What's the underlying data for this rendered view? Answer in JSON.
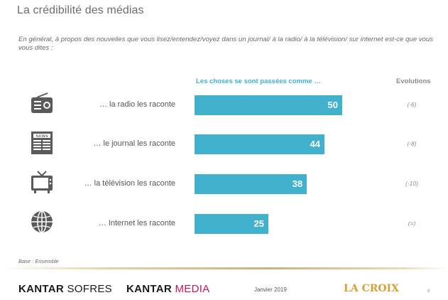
{
  "header": {
    "title": "La crédibilité des médias",
    "question": "En général, à propos des nouvelles que vous lisez/entendez/voyez dans un journal/ à la radio/ à la télévision/ sur internet est-ce que vous vous dites :"
  },
  "chart_data": {
    "type": "bar",
    "orientation": "horizontal",
    "series_header": "Les choses se sont passées comme …",
    "evolutions_header": "Evolutions",
    "categories": [
      "… la radio les raconte",
      "… le journal les raconte",
      "… la télévision les raconte",
      "… Internet les raconte"
    ],
    "values": [
      50,
      44,
      38,
      25
    ],
    "value_labels": [
      "50",
      "44",
      "38",
      "25"
    ],
    "evolutions": [
      "(-6)",
      "(-8)",
      "(-10)",
      "(=)"
    ],
    "icons": [
      "radio-icon",
      "newspaper-icon",
      "television-icon",
      "globe-icon"
    ],
    "bar_color": "#41b1ce",
    "xlim": [
      0,
      100
    ]
  },
  "footer": {
    "base": "Base : Ensemble",
    "kantar_sofres": {
      "bold": "KANTAR",
      "light": "SOFRES"
    },
    "kantar_media": {
      "bold": "KANTAR",
      "accent": "MEDIA"
    },
    "date": "Janvier 2019",
    "lacroix": "LA CROIX",
    "page_number": "8"
  }
}
